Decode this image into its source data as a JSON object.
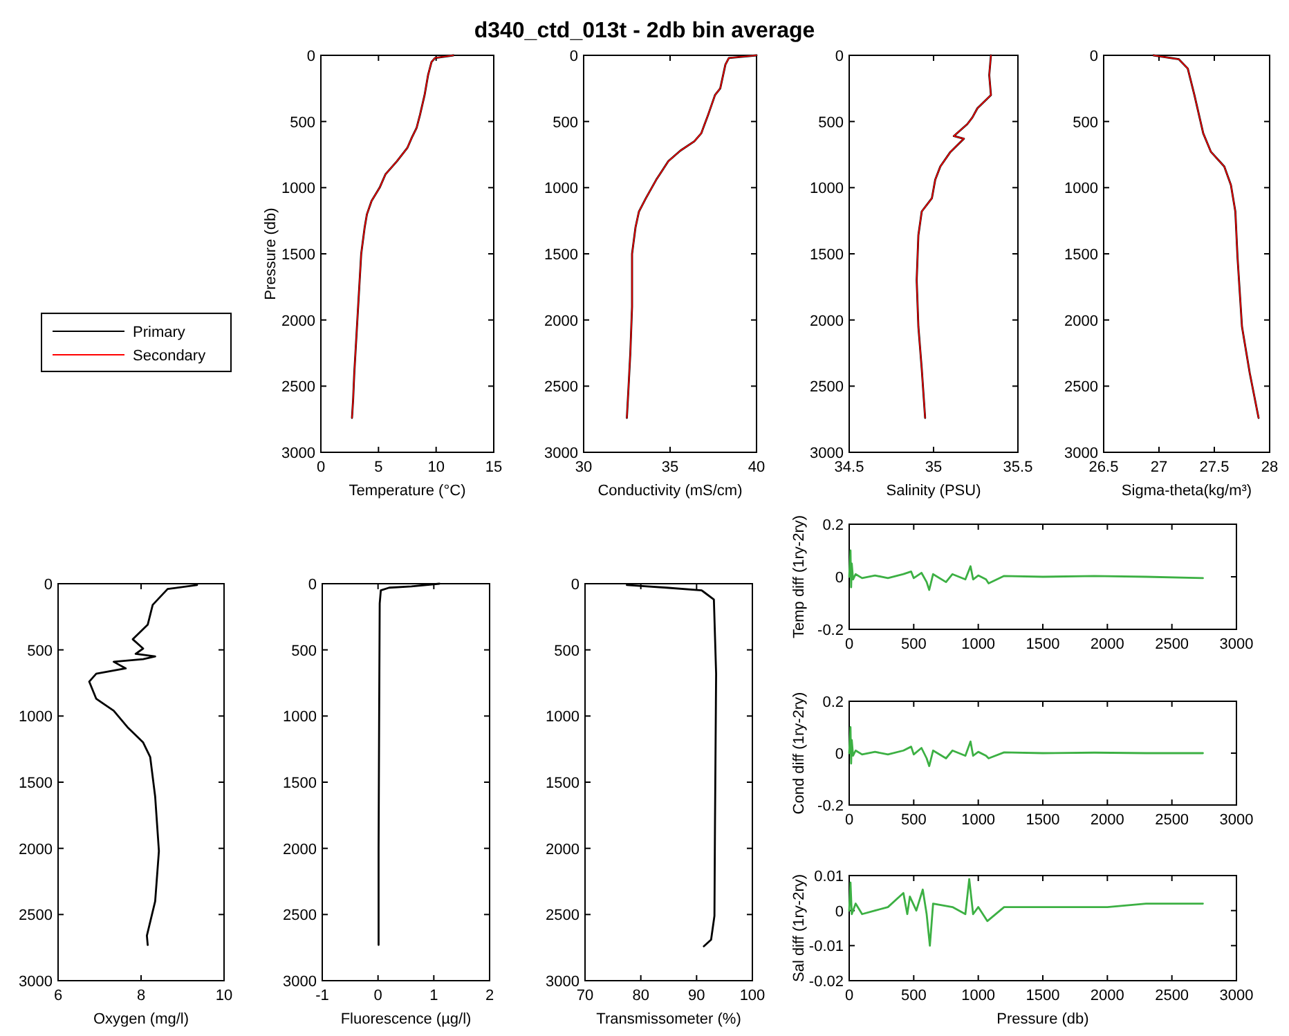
{
  "chart_data": [
    {
      "type": "other",
      "title": "d340_ctd_013t - 2db bin average"
    },
    {
      "type": "line",
      "xlabel": "Temperature (°C)",
      "ylabel": "Pressure (db)",
      "xlim": [
        0,
        15
      ],
      "xticks": [
        0,
        5,
        10,
        15
      ],
      "ylim": [
        3000,
        0
      ],
      "yticks": [
        0,
        500,
        1000,
        1500,
        2000,
        2500,
        3000
      ],
      "legend": "left",
      "series": [
        {
          "name": "Primary",
          "color": "#000000",
          "x": [
            11.5,
            9.9,
            9.6,
            9.3,
            9.0,
            8.6,
            8.3,
            7.9,
            7.5,
            6.6,
            5.6,
            5.1,
            4.4,
            4.0,
            3.8,
            3.5,
            3.3,
            3.1,
            2.9,
            2.8,
            2.7
          ],
          "values": [
            0,
            20,
            50,
            150,
            300,
            450,
            550,
            620,
            700,
            800,
            900,
            1000,
            1100,
            1200,
            1300,
            1500,
            1800,
            2100,
            2400,
            2600,
            2740
          ]
        },
        {
          "name": "Secondary",
          "color": "#ff0000",
          "x": [
            11.5,
            9.9,
            9.6,
            9.3,
            9.0,
            8.6,
            8.3,
            7.9,
            7.5,
            6.6,
            5.6,
            5.1,
            4.4,
            4.0,
            3.8,
            3.5,
            3.3,
            3.1,
            2.9,
            2.8,
            2.7
          ],
          "values": [
            0,
            20,
            50,
            150,
            300,
            450,
            550,
            620,
            700,
            800,
            900,
            1000,
            1100,
            1200,
            1300,
            1500,
            1800,
            2100,
            2400,
            2600,
            2740
          ]
        }
      ]
    },
    {
      "type": "line",
      "xlabel": "Conductivity (mS/cm)",
      "xlim": [
        30,
        40
      ],
      "xticks": [
        30,
        35,
        40
      ],
      "ylim": [
        3000,
        0
      ],
      "yticks": [
        0,
        500,
        1000,
        1500,
        2000,
        2500,
        3000
      ],
      "series": [
        {
          "color": "#000000",
          "x": [
            40,
            38.4,
            38.2,
            37.9,
            37.6,
            37.2,
            36.8,
            36.4,
            35.6,
            34.9,
            34.2,
            33.6,
            33.2,
            33.0,
            32.8,
            32.8,
            32.7,
            32.6,
            32.5
          ],
          "values": [
            0,
            20,
            70,
            250,
            300,
            450,
            590,
            650,
            720,
            800,
            940,
            1080,
            1180,
            1300,
            1500,
            1900,
            2250,
            2500,
            2740
          ]
        },
        {
          "color": "#ff0000",
          "x": [
            40,
            38.4,
            38.2,
            37.9,
            37.6,
            37.2,
            36.8,
            36.4,
            35.6,
            34.9,
            34.2,
            33.6,
            33.2,
            33.0,
            32.8,
            32.8,
            32.7,
            32.6,
            32.5
          ],
          "values": [
            0,
            20,
            70,
            250,
            300,
            450,
            590,
            650,
            720,
            800,
            940,
            1080,
            1180,
            1300,
            1500,
            1900,
            2250,
            2500,
            2740
          ]
        }
      ]
    },
    {
      "type": "line",
      "xlabel": "Salinity (PSU)",
      "xlim": [
        34.5,
        35.5
      ],
      "xticks": [
        34.5,
        35,
        35.5
      ],
      "ylim": [
        3000,
        0
      ],
      "yticks": [
        0,
        500,
        1000,
        1500,
        2000,
        2500,
        3000
      ],
      "series": [
        {
          "color": "#000000",
          "x": [
            35.34,
            35.33,
            35.34,
            35.26,
            35.23,
            35.2,
            35.12,
            35.18,
            35.1,
            35.04,
            35.01,
            34.99,
            34.93,
            34.91,
            34.9,
            34.91,
            34.93,
            34.95
          ],
          "values": [
            0,
            150,
            300,
            400,
            470,
            520,
            610,
            630,
            730,
            840,
            940,
            1080,
            1180,
            1360,
            1700,
            2050,
            2370,
            2740
          ]
        },
        {
          "color": "#ff0000",
          "x": [
            35.34,
            35.33,
            35.34,
            35.26,
            35.23,
            35.2,
            35.12,
            35.18,
            35.1,
            35.04,
            35.01,
            34.99,
            34.93,
            34.91,
            34.9,
            34.91,
            34.93,
            34.95
          ],
          "values": [
            0,
            150,
            300,
            400,
            470,
            520,
            610,
            630,
            730,
            840,
            940,
            1080,
            1180,
            1360,
            1700,
            2050,
            2370,
            2740
          ]
        }
      ]
    },
    {
      "type": "line",
      "xlabel": "Sigma-theta(kg/m³)",
      "xlim": [
        26.5,
        28
      ],
      "xticks": [
        26.5,
        27,
        27.5,
        28
      ],
      "ylim": [
        3000,
        0
      ],
      "yticks": [
        0,
        500,
        1000,
        1500,
        2000,
        2500,
        3000
      ],
      "series": [
        {
          "color": "#000000",
          "x": [
            26.95,
            27.18,
            27.26,
            27.32,
            27.4,
            27.47,
            27.59,
            27.65,
            27.69,
            27.71,
            27.75,
            27.82,
            27.9
          ],
          "values": [
            0,
            30,
            100,
            300,
            590,
            730,
            840,
            980,
            1180,
            1530,
            2050,
            2400,
            2740
          ]
        },
        {
          "color": "#ff0000",
          "x": [
            26.95,
            27.18,
            27.26,
            27.32,
            27.4,
            27.47,
            27.59,
            27.65,
            27.69,
            27.71,
            27.75,
            27.82,
            27.9
          ],
          "values": [
            0,
            30,
            100,
            300,
            590,
            730,
            840,
            980,
            1180,
            1530,
            2050,
            2400,
            2740
          ]
        }
      ]
    },
    {
      "type": "line",
      "xlabel": "Oxygen (mg/l)",
      "xlim": [
        6,
        10
      ],
      "xticks": [
        6,
        8,
        10
      ],
      "ylim": [
        3000,
        0
      ],
      "yticks": [
        0,
        500,
        1000,
        1500,
        2000,
        2500,
        3000
      ],
      "series": [
        {
          "color": "#000000",
          "x": [
            9.35,
            8.64,
            8.28,
            8.16,
            7.8,
            8.05,
            7.87,
            8.34,
            8.05,
            7.34,
            7.63,
            6.92,
            6.75,
            6.92,
            7.34,
            7.69,
            8.05,
            8.22,
            8.34,
            8.43,
            8.34,
            8.14,
            8.16
          ],
          "values": [
            10,
            40,
            160,
            310,
            420,
            490,
            530,
            550,
            570,
            590,
            640,
            680,
            740,
            870,
            960,
            1090,
            1200,
            1310,
            1610,
            2020,
            2400,
            2660,
            2730
          ]
        }
      ]
    },
    {
      "type": "line",
      "xlabel": "Fluorescence (µg/l)",
      "xlim": [
        -1,
        2
      ],
      "xticks": [
        -1,
        0,
        1,
        2
      ],
      "ylim": [
        3000,
        0
      ],
      "yticks": [
        0,
        500,
        1000,
        1500,
        2000,
        2500,
        3000
      ],
      "series": [
        {
          "color": "#000000",
          "x": [
            1.1,
            0.6,
            0.2,
            0.05,
            0.03,
            0.02,
            0.01,
            0.01
          ],
          "values": [
            0,
            20,
            30,
            50,
            150,
            1000,
            2000,
            2730
          ]
        }
      ]
    },
    {
      "type": "line",
      "xlabel": "Transmissometer (%)",
      "xlim": [
        70,
        100
      ],
      "xticks": [
        70,
        80,
        90,
        100
      ],
      "ylim": [
        3000,
        0
      ],
      "yticks": [
        0,
        500,
        1000,
        1500,
        2000,
        2500,
        3000
      ],
      "series": [
        {
          "color": "#000000",
          "x": [
            77.5,
            84.6,
            90.9,
            93.1,
            93.5,
            93.3,
            93.2,
            92.6,
            91.3
          ],
          "values": [
            10,
            30,
            50,
            120,
            680,
            1800,
            2510,
            2690,
            2740
          ]
        }
      ]
    },
    {
      "type": "line",
      "ylabel": "Temp diff (1ry-2ry)",
      "xlim": [
        0,
        3000
      ],
      "xticks": [
        0,
        500,
        1000,
        1500,
        2000,
        2500,
        3000
      ],
      "ylim": [
        -0.2,
        0.2
      ],
      "yticks": [
        -0.2,
        0,
        0.2
      ],
      "series": [
        {
          "color": "#3cb043",
          "x": [
            0,
            10,
            15,
            20,
            30,
            50,
            100,
            200,
            300,
            420,
            480,
            500,
            560,
            600,
            620,
            650,
            750,
            800,
            900,
            940,
            960,
            1000,
            1060,
            1080,
            1200,
            1500,
            1900,
            2300,
            2740
          ],
          "values": [
            0,
            0.1,
            -0.04,
            0.05,
            -0.01,
            0.01,
            -0.005,
            0.005,
            -0.005,
            0.01,
            0.02,
            -0.005,
            0.015,
            -0.02,
            -0.05,
            0.01,
            -0.02,
            0.01,
            -0.01,
            0.04,
            -0.01,
            0.005,
            -0.01,
            -0.025,
            0.003,
            0,
            0.003,
            0,
            -0.005
          ]
        }
      ]
    },
    {
      "type": "line",
      "ylabel": "Cond diff (1ry-2ry)",
      "xlim": [
        0,
        3000
      ],
      "xticks": [
        0,
        500,
        1000,
        1500,
        2000,
        2500,
        3000
      ],
      "ylim": [
        -0.2,
        0.2
      ],
      "yticks": [
        -0.2,
        0,
        0.2
      ],
      "series": [
        {
          "color": "#3cb043",
          "x": [
            0,
            10,
            15,
            20,
            30,
            50,
            100,
            200,
            300,
            420,
            480,
            500,
            560,
            600,
            620,
            650,
            750,
            800,
            900,
            940,
            960,
            1000,
            1060,
            1080,
            1200,
            1500,
            1900,
            2300,
            2740
          ],
          "values": [
            0,
            0.1,
            -0.04,
            0.05,
            -0.01,
            0.01,
            -0.005,
            0.005,
            -0.005,
            0.01,
            0.025,
            -0.005,
            0.02,
            -0.02,
            -0.05,
            0.01,
            -0.02,
            0.01,
            -0.01,
            0.045,
            -0.01,
            0.005,
            -0.01,
            -0.02,
            0.003,
            0,
            0.002,
            0,
            0
          ]
        }
      ]
    },
    {
      "type": "line",
      "xlabel": "Pressure (db)",
      "ylabel": "Sal diff (1ry-2ry)",
      "xlim": [
        0,
        3000
      ],
      "xticks": [
        0,
        500,
        1000,
        1500,
        2000,
        2500,
        3000
      ],
      "ylim": [
        -0.02,
        0.01
      ],
      "yticks": [
        -0.02,
        -0.01,
        0,
        0.01
      ],
      "series": [
        {
          "color": "#3cb043",
          "x": [
            0,
            10,
            20,
            50,
            100,
            200,
            300,
            420,
            450,
            470,
            520,
            570,
            600,
            625,
            650,
            800,
            900,
            930,
            960,
            1000,
            1070,
            1200,
            1600,
            2000,
            2300,
            2740
          ],
          "values": [
            0,
            0.008,
            -0.001,
            0.002,
            -0.001,
            0,
            0.001,
            0.005,
            -0.001,
            0.004,
            0,
            0.006,
            -0.001,
            -0.01,
            0.002,
            0.001,
            -0.001,
            0.009,
            -0.001,
            0.001,
            -0.003,
            0.001,
            0.001,
            0.001,
            0.002,
            0.002
          ]
        }
      ]
    }
  ]
}
